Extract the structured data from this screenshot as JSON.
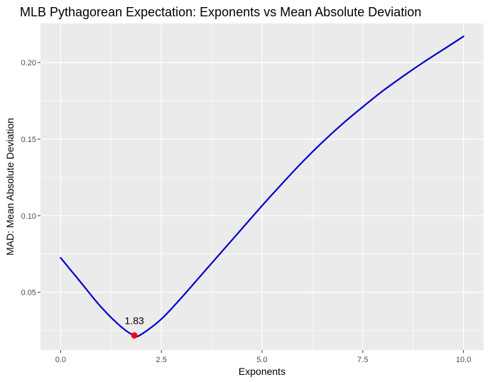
{
  "chart_data": {
    "type": "line",
    "title": "MLB Pythagorean Expectation: Exponents vs Mean Absolute Deviation",
    "xlabel": "Exponents",
    "ylabel": "MAD: Mean Absolute Deviation",
    "xlim": [
      -0.5,
      10.5
    ],
    "ylim": [
      0.0123,
      0.2255
    ],
    "x_ticks": [
      0.0,
      2.5,
      5.0,
      7.5,
      10.0
    ],
    "x_tick_labels": [
      "0.0",
      "2.5",
      "5.0",
      "7.5",
      "10.0"
    ],
    "y_ticks": [
      0.05,
      0.1,
      0.15,
      0.2
    ],
    "y_tick_labels": [
      "0.05",
      "0.10",
      "0.15",
      "0.20"
    ],
    "grid": true,
    "background": "#ebebeb",
    "grid_color": "#ffffff",
    "series": [
      {
        "color": "#0000cd",
        "x": [
          0.0,
          0.5,
          1.0,
          1.5,
          1.83,
          2.0,
          2.5,
          3.0,
          3.5,
          4.0,
          4.5,
          5.0,
          5.5,
          6.0,
          6.5,
          7.0,
          7.5,
          8.0,
          8.5,
          9.0,
          9.5,
          10.0
        ],
        "y": [
          0.0725,
          0.0565,
          0.0405,
          0.0275,
          0.0218,
          0.0225,
          0.0325,
          0.0465,
          0.0615,
          0.0765,
          0.0915,
          0.1065,
          0.121,
          0.135,
          0.148,
          0.16,
          0.171,
          0.1815,
          0.191,
          0.2,
          0.2085,
          0.217
        ]
      }
    ],
    "highlight_point": {
      "x": 1.83,
      "y": 0.0218,
      "label": "1.83",
      "color": "#ff0000"
    }
  }
}
